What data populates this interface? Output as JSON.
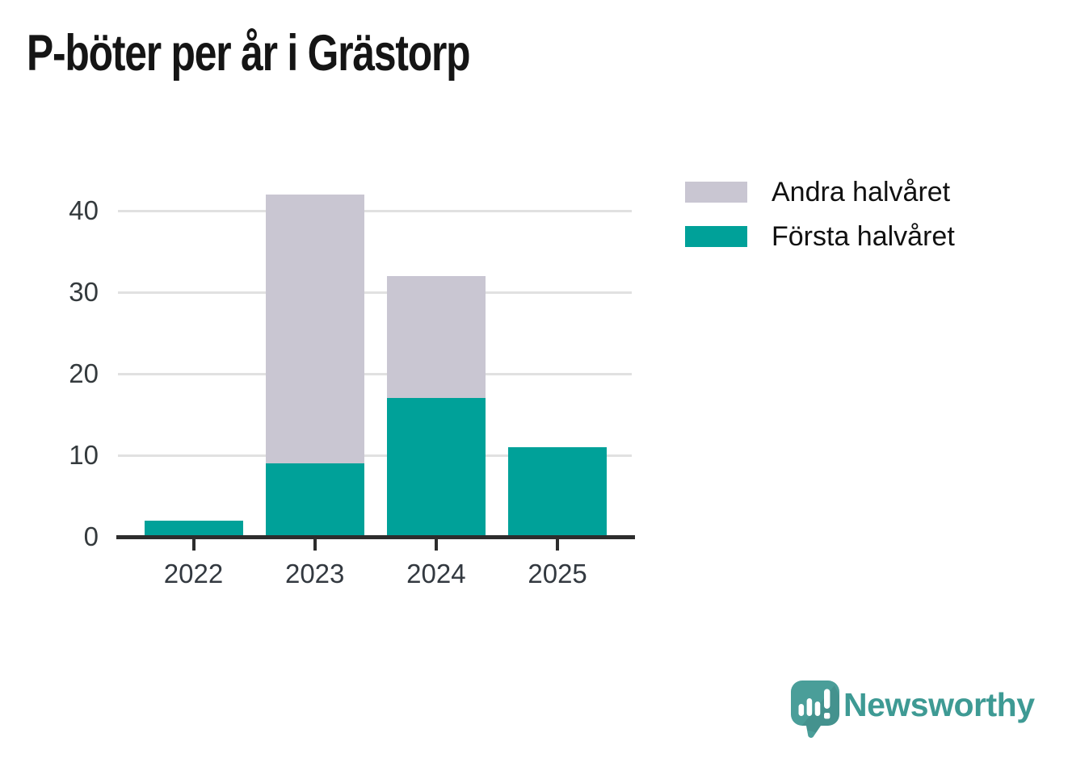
{
  "chart": {
    "title": "P-böter per år i Grästorp"
  },
  "chart_data": {
    "type": "bar",
    "stacked": true,
    "title": "P-böter per år i Grästorp",
    "categories": [
      "2022",
      "2023",
      "2024",
      "2025"
    ],
    "series": [
      {
        "name": "Första halvåret",
        "color": "#00a199",
        "values": [
          2,
          9,
          17,
          11
        ]
      },
      {
        "name": "Andra halvåret",
        "color": "#c9c6d2",
        "values": [
          0,
          33,
          15,
          0
        ]
      }
    ],
    "stack_totals": [
      2,
      42,
      32,
      11
    ],
    "xlabel": "",
    "ylabel": "",
    "yticks": [
      0,
      10,
      20,
      30,
      40
    ],
    "ylim": [
      0,
      42
    ],
    "grid": true,
    "legend_position": "upper-right",
    "legend_order_top_to_bottom": [
      "Andra halvåret",
      "Första halvåret"
    ]
  },
  "branding": {
    "logo_text": "Newsworthy",
    "logo_color": "#3e9a94",
    "logo_mark_color": "#4a9e99"
  },
  "style_colors": {
    "axis": "#2d2d2d",
    "gridline": "#e1e1e1",
    "tick_label": "#333940",
    "title": "#151515",
    "background": "#ffffff"
  }
}
